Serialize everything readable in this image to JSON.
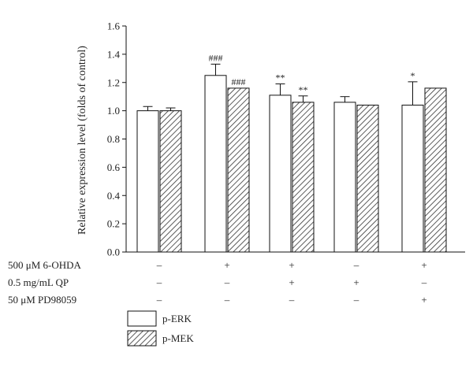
{
  "chart_data": {
    "type": "bar",
    "ylabel": "Relative expression level (folds of control)",
    "ylim": [
      0,
      1.6
    ],
    "yticks": [
      "0.0",
      "0.2",
      "0.4",
      "0.6",
      "0.8",
      "1.0",
      "1.2",
      "1.4",
      "1.6"
    ],
    "groups": 5,
    "series": [
      {
        "name": "p-ERK",
        "pattern": "open",
        "values": [
          1.0,
          1.25,
          1.11,
          1.06,
          1.04
        ],
        "errors": [
          0.03,
          0.08,
          0.08,
          0.04,
          0.165
        ],
        "annotations": [
          "",
          "###",
          "**",
          "",
          "*"
        ]
      },
      {
        "name": "p-MEK",
        "pattern": "hatched",
        "values": [
          1.0,
          1.16,
          1.06,
          1.04,
          1.16
        ],
        "errors": [
          0.02,
          0.0,
          0.045,
          0.0,
          0.0
        ],
        "annotations": [
          "",
          "###",
          "**",
          "",
          ""
        ]
      }
    ],
    "conditions": [
      {
        "label": "500 μM 6-OHDA",
        "values": [
          "–",
          "+",
          "+",
          "–",
          "+"
        ]
      },
      {
        "label": "0.5 mg/mL QP",
        "values": [
          "–",
          "–",
          "+",
          "+",
          "–"
        ]
      },
      {
        "label": "50 μM PD98059",
        "values": [
          "–",
          "–",
          "–",
          "–",
          "+"
        ]
      }
    ],
    "legend_position": "bottom-left"
  },
  "colors": {
    "bar_fill": "#ffffff",
    "stroke": "#111111",
    "hatch": "#333333"
  }
}
